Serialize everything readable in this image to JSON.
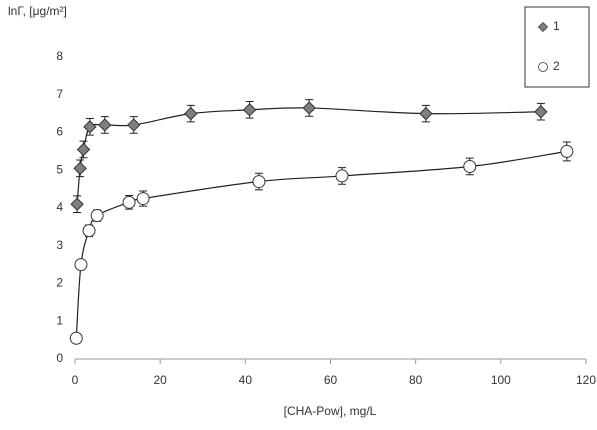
{
  "chart_data": {
    "type": "scatter",
    "xlabel": "[CHA-Pow], mg/L",
    "ylabel": "lnΓ, [μg/m²]",
    "xlim": [
      0,
      120
    ],
    "xticks": [
      0,
      20,
      40,
      60,
      80,
      100,
      120
    ],
    "ylim": [
      0,
      8
    ],
    "yticks": [
      0,
      1,
      2,
      3,
      4,
      5,
      6,
      7,
      8
    ],
    "grid": false,
    "legend": "upper right",
    "series": [
      {
        "name": "1",
        "marker": "diamond",
        "color": "#7f7f7f",
        "x": [
          0.5,
          1.2,
          2,
          3.5,
          7,
          13.8,
          27.2,
          41,
          55,
          82.4,
          109.4
        ],
        "values": [
          4.1,
          5.05,
          5.55,
          6.15,
          6.2,
          6.2,
          6.5,
          6.6,
          6.65,
          6.5,
          6.55
        ],
        "errors": [
          0.22,
          0.22,
          0.22,
          0.22,
          0.22,
          0.22,
          0.22,
          0.22,
          0.22,
          0.22,
          0.22
        ]
      },
      {
        "name": "2",
        "marker": "circle",
        "color": "#ffffff",
        "x": [
          0.3,
          1.4,
          3.3,
          5.2,
          12.7,
          16,
          43.2,
          62.7,
          92.7,
          115.5
        ],
        "values": [
          0.55,
          2.5,
          3.4,
          3.8,
          4.15,
          4.25,
          4.7,
          4.85,
          5.1,
          5.5
        ],
        "errors": [
          0.1,
          0.1,
          0.15,
          0.15,
          0.18,
          0.2,
          0.22,
          0.22,
          0.22,
          0.25
        ]
      }
    ]
  }
}
